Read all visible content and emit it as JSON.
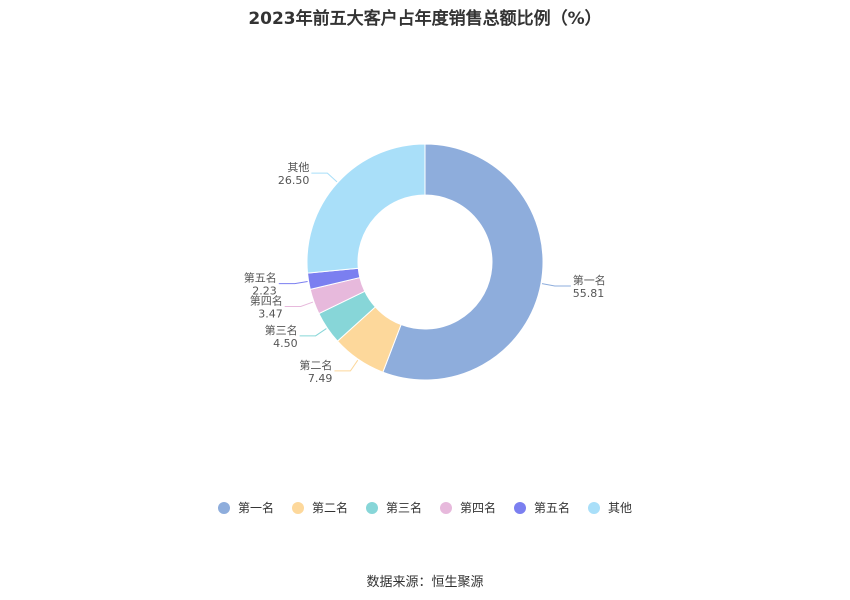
{
  "title": "2023年前五大客户占年度销售总额比例（%）",
  "source": "数据来源：恒生聚源",
  "chart_data": {
    "type": "pie",
    "title": "2023年前五大客户占年度销售总额比例（%）",
    "donut": true,
    "categories": [
      "第一名",
      "第二名",
      "第三名",
      "第四名",
      "第五名",
      "其他"
    ],
    "values": [
      55.81,
      7.49,
      4.5,
      3.47,
      2.23,
      26.5
    ],
    "value_labels": [
      "55.81",
      "7.49",
      "4.50",
      "3.47",
      "2.23",
      "26.50"
    ],
    "colors": [
      "#8eaddc",
      "#fdd89b",
      "#87d6d8",
      "#e7b9dc",
      "#7b7ff0",
      "#a9dff9"
    ],
    "legend_position": "bottom"
  }
}
